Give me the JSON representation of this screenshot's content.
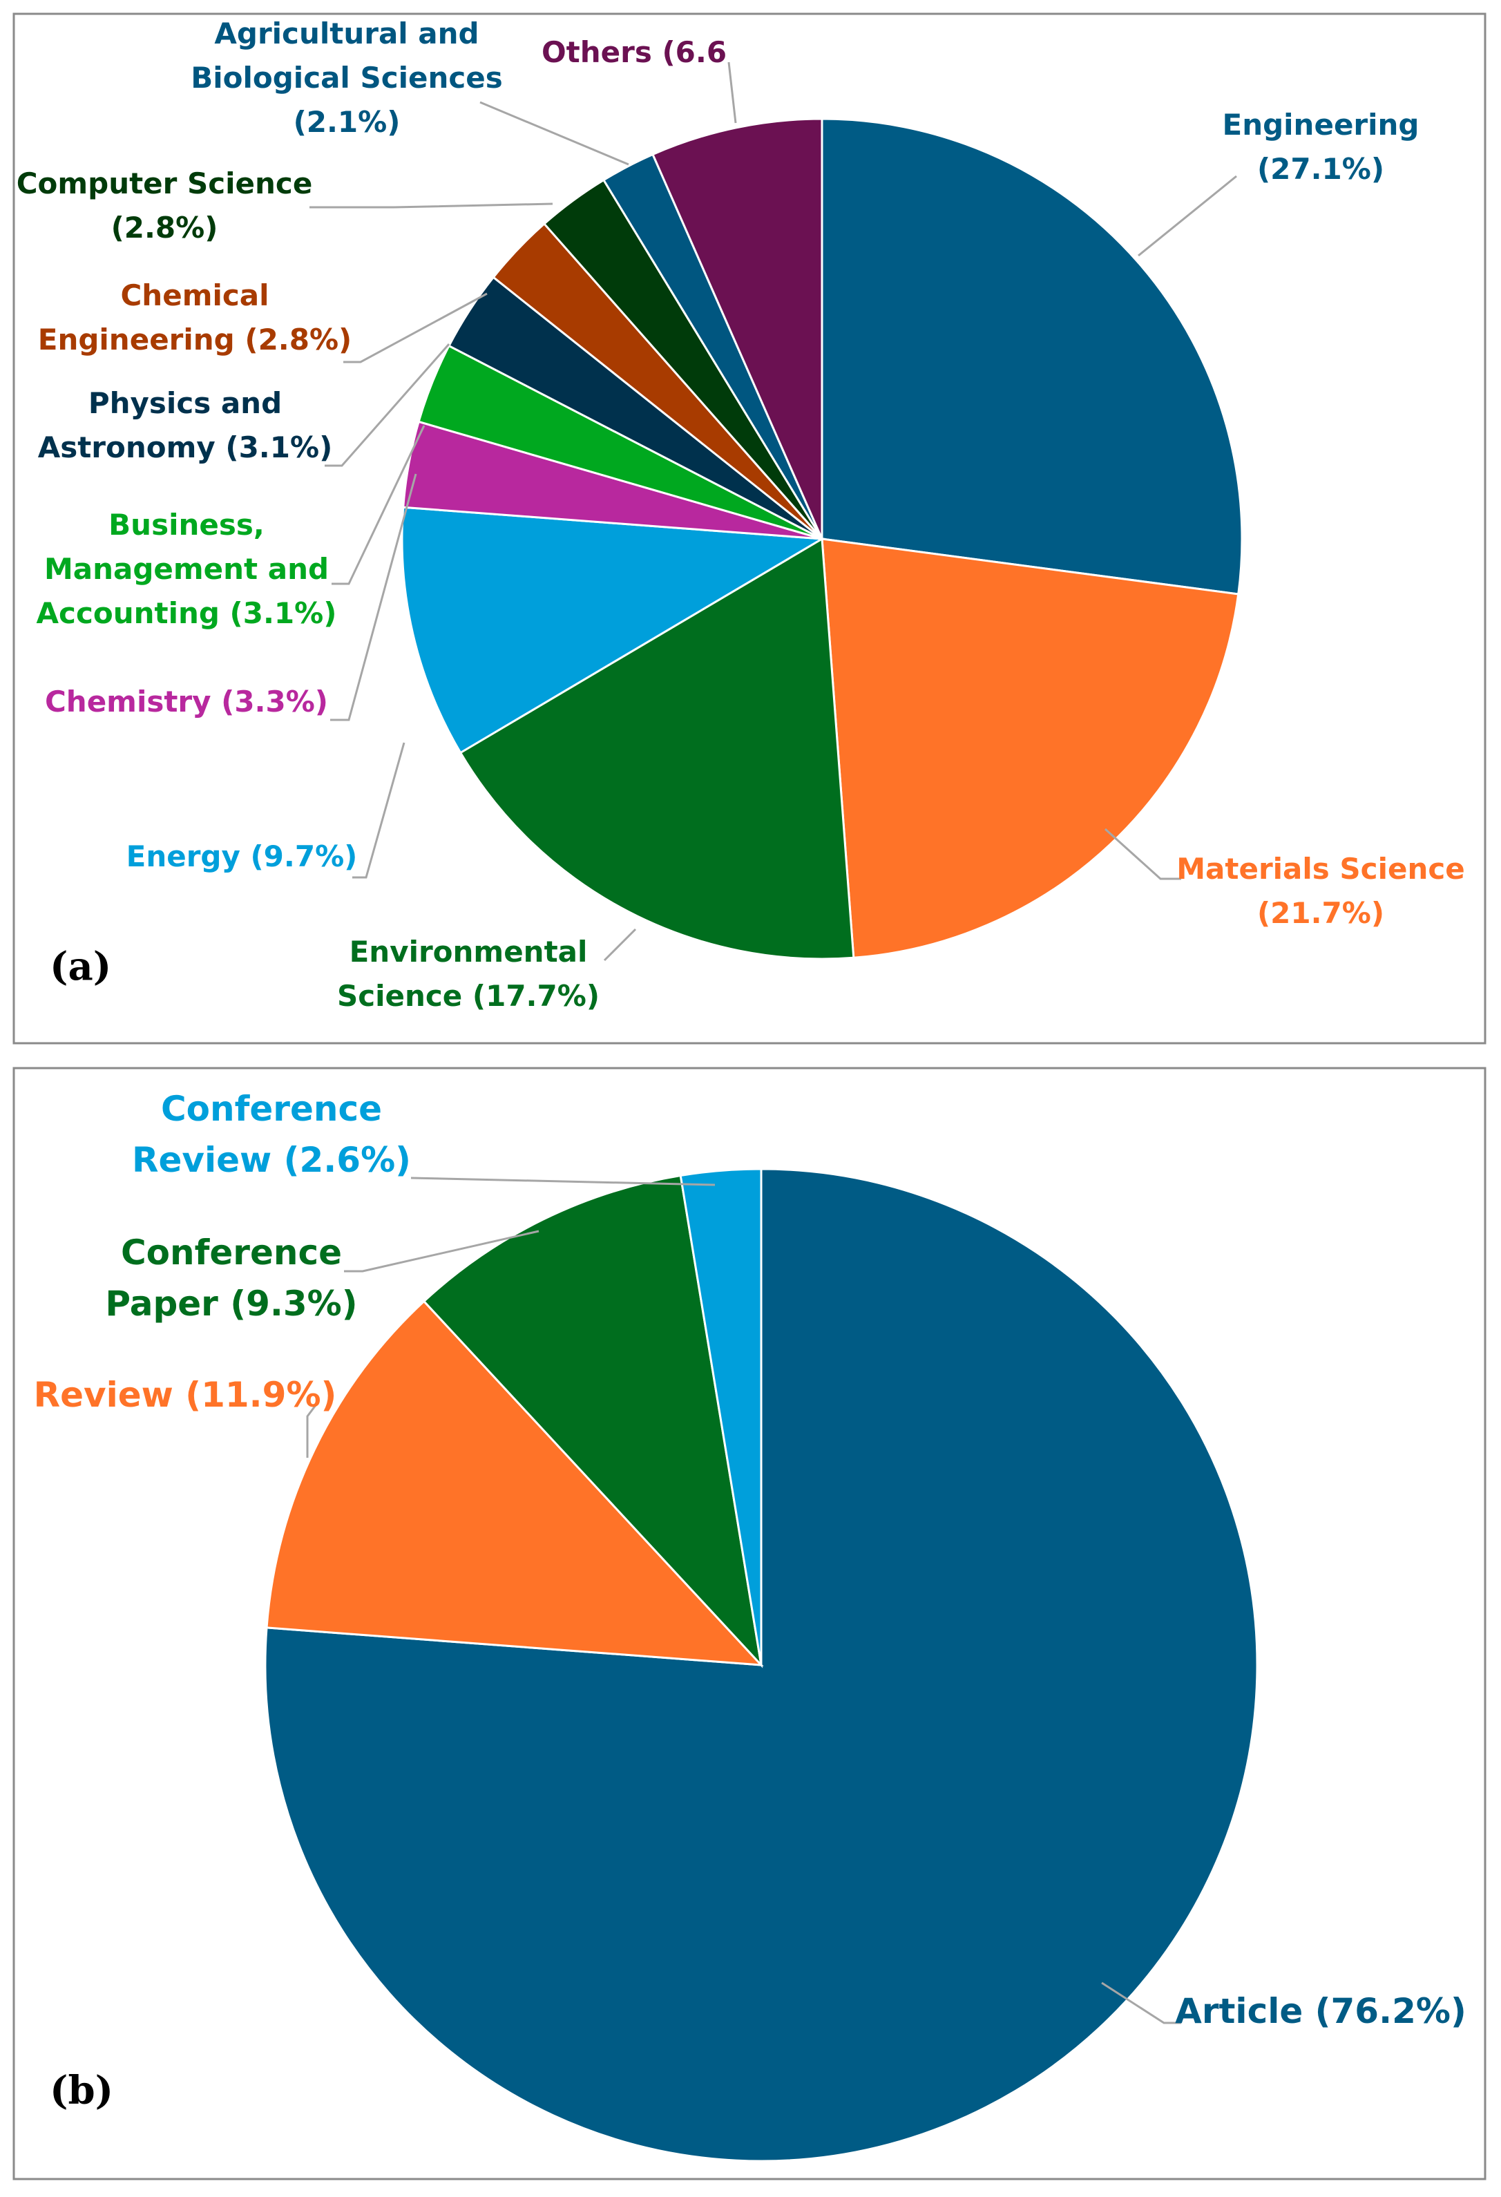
{
  "chart_data": [
    {
      "type": "pie",
      "panel_label": "(a)",
      "title": "",
      "slices": [
        {
          "name": "Engineering",
          "value": 27.1,
          "color": "#005b85",
          "label_lines": [
            "Engineering",
            "(27.1%)"
          ]
        },
        {
          "name": "Materials Science",
          "value": 21.7,
          "color": "#ff7328",
          "label_lines": [
            "Materials Science",
            "(21.7%)"
          ]
        },
        {
          "name": "Environmental Science",
          "value": 17.7,
          "color": "#006e1e",
          "label_lines": [
            "Environmental",
            "Science (17.7%)"
          ]
        },
        {
          "name": "Energy",
          "value": 9.7,
          "color": "#009fdb",
          "label_lines": [
            "Energy (9.7%)"
          ]
        },
        {
          "name": "Chemistry",
          "value": 3.3,
          "color": "#b8289e",
          "label_lines": [
            "Chemistry (3.3%)"
          ]
        },
        {
          "name": "Business, Management and Accounting",
          "value": 3.1,
          "color": "#00a81f",
          "label_lines": [
            "Business,",
            "Management and",
            "Accounting (3.1%)"
          ]
        },
        {
          "name": "Physics and Astronomy",
          "value": 3.1,
          "color": "#00314d",
          "label_lines": [
            "Physics and",
            "Astronomy (3.1%)"
          ]
        },
        {
          "name": "Chemical Engineering",
          "value": 2.8,
          "color": "#a83b00",
          "label_lines": [
            "Chemical",
            "Engineering (2.8%)"
          ]
        },
        {
          "name": "Computer Science",
          "value": 2.8,
          "color": "#003b0a",
          "label_lines": [
            "Computer Science",
            "(2.8%)"
          ]
        },
        {
          "name": "Agricultural and Biological Sciences",
          "value": 2.1,
          "color": "#005680",
          "label_lines": [
            "Agricultural and",
            "Biological Sciences",
            "(2.1%)"
          ]
        },
        {
          "name": "Others",
          "value": 6.6,
          "color": "#6b1152",
          "label_lines": [
            "Others (6.6"
          ]
        }
      ]
    },
    {
      "type": "pie",
      "panel_label": "(b)",
      "title": "",
      "slices": [
        {
          "name": "Article",
          "value": 76.2,
          "color": "#005b85",
          "label_lines": [
            "Article (76.2%)"
          ]
        },
        {
          "name": "Review",
          "value": 11.9,
          "color": "#ff7328",
          "label_lines": [
            "Review (11.9%)"
          ]
        },
        {
          "name": "Conference Paper",
          "value": 9.3,
          "color": "#006e1e",
          "label_lines": [
            "Conference",
            "Paper (9.3%)"
          ]
        },
        {
          "name": "Conference Review",
          "value": 2.6,
          "color": "#009fdb",
          "label_lines": [
            "Conference",
            "Review (2.6%)"
          ]
        }
      ]
    }
  ]
}
